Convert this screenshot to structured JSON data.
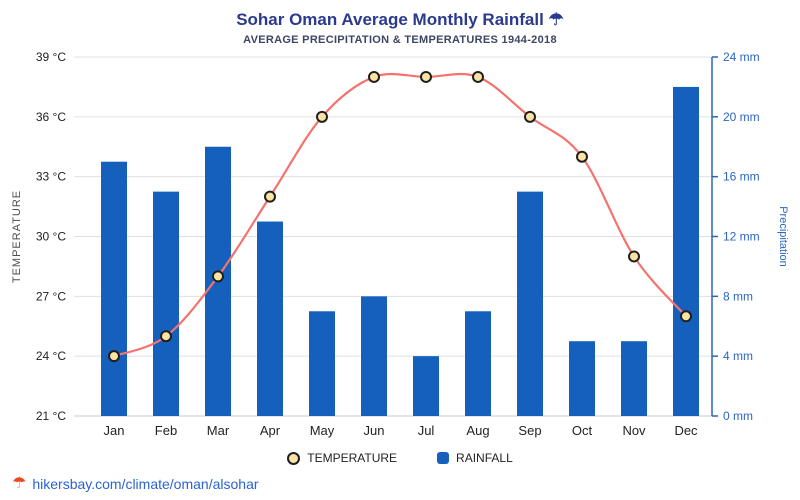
{
  "header": {
    "title": "Sohar Oman Average Monthly Rainfall ☂",
    "subtitle": "AVERAGE PRECIPITATION & TEMPERATURES 1944-2018"
  },
  "chart_data": {
    "type": "combo",
    "categories": [
      "Jan",
      "Feb",
      "Mar",
      "Apr",
      "May",
      "Jun",
      "Jul",
      "Aug",
      "Sep",
      "Oct",
      "Nov",
      "Dec"
    ],
    "series": [
      {
        "name": "TEMPERATURE",
        "type": "line",
        "axis": "left",
        "unit": "°C",
        "values": [
          24,
          25,
          28,
          32,
          36,
          38,
          38,
          38,
          36,
          34,
          29,
          26
        ],
        "color": "#f4736e",
        "marker_fill": "#fbe3a3",
        "marker_stroke": "#1f1f1f"
      },
      {
        "name": "RAINFALL",
        "type": "bar",
        "axis": "right",
        "unit": "mm",
        "values": [
          17,
          15,
          18,
          13,
          7,
          8,
          4,
          7,
          15,
          5,
          5,
          22
        ],
        "color": "#1560bd"
      }
    ],
    "left_axis": {
      "label": "TEMPERATURE",
      "min": 21,
      "max": 39,
      "step": 3,
      "tick_suffix": " °C",
      "tick_color": "#222222",
      "title_color": "#4d4d4d"
    },
    "right_axis": {
      "label": "Precipitation",
      "min": 0,
      "max": 24,
      "step": 4,
      "tick_suffix": " mm",
      "color": "#2b66c4"
    },
    "grid": true,
    "legend_position": "bottom"
  },
  "footer": {
    "icon": "☂",
    "link": "hikersbay.com/climate/oman/alsohar"
  }
}
